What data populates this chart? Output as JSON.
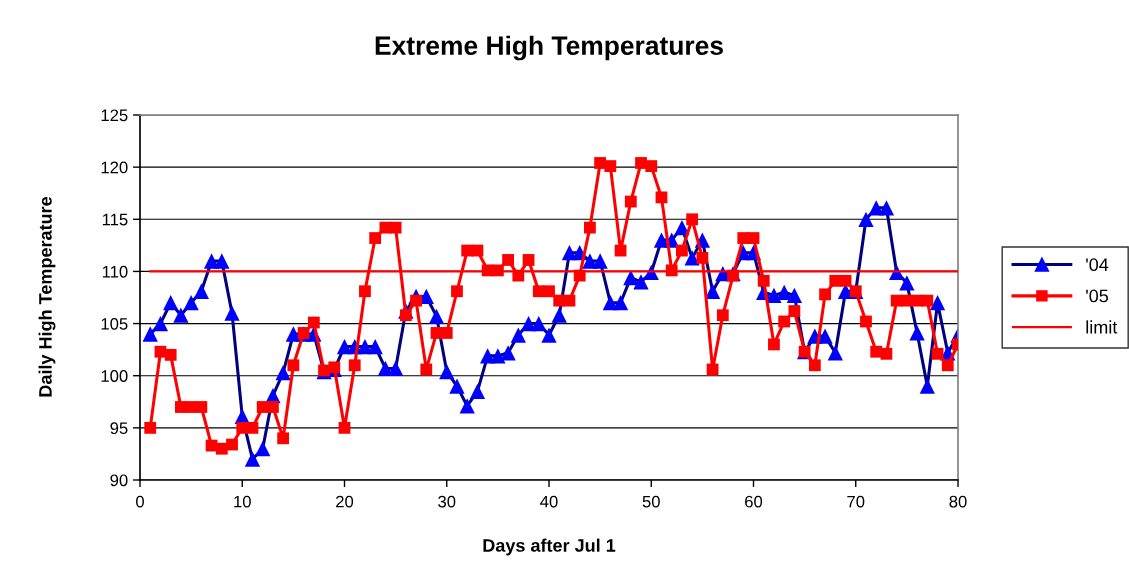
{
  "chart_data": {
    "type": "line",
    "title": "Extreme High Temperatures",
    "xlabel": "Days after Jul 1",
    "ylabel": "Daily High Temperature",
    "x": [
      1,
      2,
      3,
      4,
      5,
      6,
      7,
      8,
      9,
      10,
      11,
      12,
      13,
      14,
      15,
      16,
      17,
      18,
      19,
      20,
      21,
      22,
      23,
      24,
      25,
      26,
      27,
      28,
      29,
      30,
      31,
      32,
      33,
      34,
      35,
      36,
      37,
      38,
      39,
      40,
      41,
      42,
      43,
      44,
      45,
      46,
      47,
      48,
      49,
      50,
      51,
      52,
      53,
      54,
      55,
      56,
      57,
      58,
      59,
      60,
      61,
      62,
      63,
      64,
      65,
      66,
      67,
      68,
      69,
      70,
      71,
      72,
      73,
      74,
      75,
      76,
      77,
      78,
      79,
      80
    ],
    "series": [
      {
        "name": "'04",
        "color": "#000080",
        "marker": "triangle",
        "colors": [
          "#0000ff",
          "#0000ff",
          "#0000ff",
          "#0000ff",
          "#0000ff",
          "#0000ff",
          "#0000ff",
          "#0000ff",
          "#0000ff",
          "#0000ff",
          "#0000ff",
          "#0000ff",
          "#0000ff",
          "#0000ff",
          "#0000ff",
          "#0000ff",
          "#0000ff",
          "#0000ff",
          "#0000ff",
          "#0000ff",
          "#0000ff",
          "#0000ff",
          "#0000ff",
          "#0000ff",
          "#0000ff",
          "#0000ff",
          "#0000ff",
          "#0000ff",
          "#0000ff",
          "#0000ff",
          "#0000ff",
          "#0000ff",
          "#0000ff",
          "#0000ff",
          "#0000ff",
          "#0000ff",
          "#0000ff",
          "#0000ff",
          "#0000ff",
          "#0000ff",
          "#0000ff",
          "#0000ff",
          "#0000ff",
          "#0000ff",
          "#0000ff",
          "#0000ff",
          "#0000ff",
          "#0000ff",
          "#0000ff",
          "#0000ff",
          "#0000ff",
          "#0000ff",
          "#0000ff",
          "#0000ff",
          "#0000ff",
          "#0000ff",
          "#0000ff",
          "#0000ff",
          "#0000ff",
          "#0000ff",
          "#0000ff",
          "#0000ff",
          "#0000ff",
          "#0000ff",
          "#0000ff",
          "#0000ff",
          "#0000ff",
          "#0000ff",
          "#0000ff",
          "#0000ff",
          "#0000ff",
          "#0000ff",
          "#0000ff",
          "#0000ff",
          "#0000ff",
          "#0000ff",
          "#0000ff",
          "#0000ff",
          "#0000ff",
          "#0000ff"
        ],
        "values": [
          104,
          105,
          107,
          105.8,
          107,
          108.1,
          111,
          111,
          106,
          96.1,
          92,
          93,
          98.1,
          100.3,
          104,
          104,
          104,
          100.4,
          100.6,
          102.8,
          102.8,
          102.8,
          102.8,
          100.7,
          100.7,
          106.2,
          107.6,
          107.6,
          105.7,
          100.4,
          99,
          97.1,
          98.5,
          101.9,
          101.9,
          102.2,
          103.9,
          105,
          105,
          103.9,
          105.8,
          111.8,
          111.8,
          111,
          111,
          107,
          107,
          109.4,
          109,
          109.9,
          113,
          113,
          114.2,
          111.3,
          113,
          108.1,
          109.8,
          109.8,
          111.8,
          111.8,
          108,
          107.7,
          108,
          107.7,
          102.3,
          103.8,
          103.8,
          102.2,
          108.1,
          108.1,
          115,
          116.1,
          116.1,
          109.9,
          108.9,
          104.1,
          99,
          107,
          102.2,
          103.9
        ]
      },
      {
        "name": "'05",
        "color": "#ff0000",
        "marker": "square",
        "values": [
          95,
          102.3,
          102,
          97,
          97,
          97,
          93.3,
          93,
          93.4,
          95,
          95,
          97,
          97,
          94,
          101,
          104.1,
          105.1,
          100.5,
          100.8,
          95,
          101,
          108.1,
          113.2,
          114.2,
          114.2,
          105.8,
          107.2,
          100.6,
          104.1,
          104.1,
          108.1,
          112,
          112,
          110.1,
          110.1,
          111.1,
          109.6,
          111.1,
          108.1,
          108.1,
          107.2,
          107.2,
          109.6,
          114.2,
          120.4,
          120.1,
          112,
          116.7,
          120.4,
          120.1,
          117.1,
          110.1,
          112,
          115,
          111.3,
          100.6,
          105.8,
          109.6,
          113.2,
          113.2,
          109.1,
          103,
          105.2,
          106.2,
          102.3,
          101,
          107.8,
          109.1,
          109.1,
          108.1,
          105.2,
          102.3,
          102.1,
          107.2,
          107.2,
          107.2,
          107.2,
          102.1,
          101,
          103
        ]
      },
      {
        "name": "limit",
        "color": "#ff0000",
        "marker": "none",
        "x": [
          1,
          80
        ],
        "values": [
          110,
          110
        ]
      }
    ],
    "xlim": [
      0,
      80
    ],
    "xticks": [
      0,
      10,
      20,
      30,
      40,
      50,
      60,
      70,
      80
    ],
    "ylim": [
      90,
      125
    ],
    "yticks": [
      90,
      95,
      100,
      105,
      110,
      115,
      120,
      125
    ],
    "grid": "y",
    "legend": "right",
    "line_style": "solid"
  }
}
